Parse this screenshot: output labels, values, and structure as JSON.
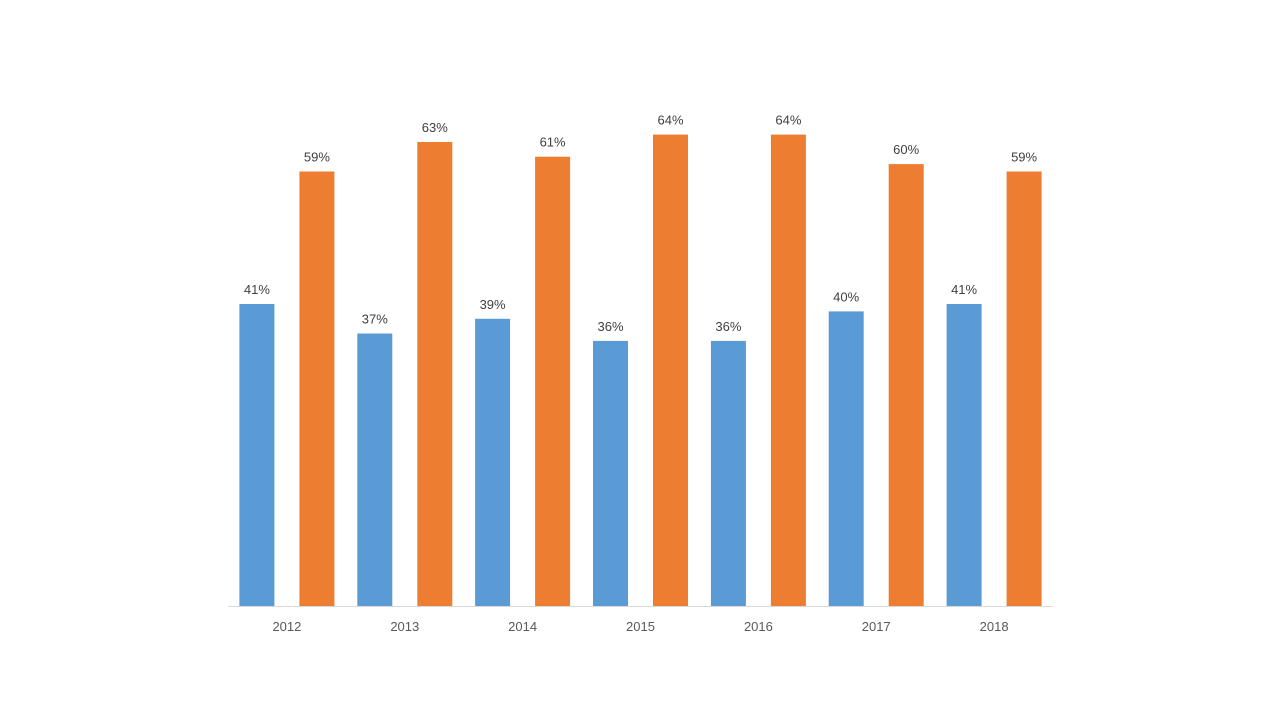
{
  "chart_data": {
    "type": "bar",
    "title": "",
    "xlabel": "",
    "ylabel": "",
    "categories": [
      "2012",
      "2013",
      "2014",
      "2015",
      "2016",
      "2017",
      "2018"
    ],
    "series": [
      {
        "color": "#5B9BD5",
        "values": [
          41,
          37,
          39,
          36,
          36,
          40,
          41
        ],
        "labels": [
          "41%",
          "37%",
          "39%",
          "36%",
          "36%",
          "40%",
          "41%"
        ]
      },
      {
        "color": "#ED7D31",
        "values": [
          59,
          63,
          61,
          64,
          64,
          60,
          59
        ],
        "labels": [
          "59%",
          "63%",
          "61%",
          "64%",
          "64%",
          "60%",
          "59%"
        ]
      }
    ],
    "ylim": [
      0,
      70
    ],
    "value_unit": "%",
    "grid": false,
    "legend": "none",
    "axis_color": "#D9D9D9",
    "label_color": "#404040",
    "tick_color": "#595959"
  }
}
